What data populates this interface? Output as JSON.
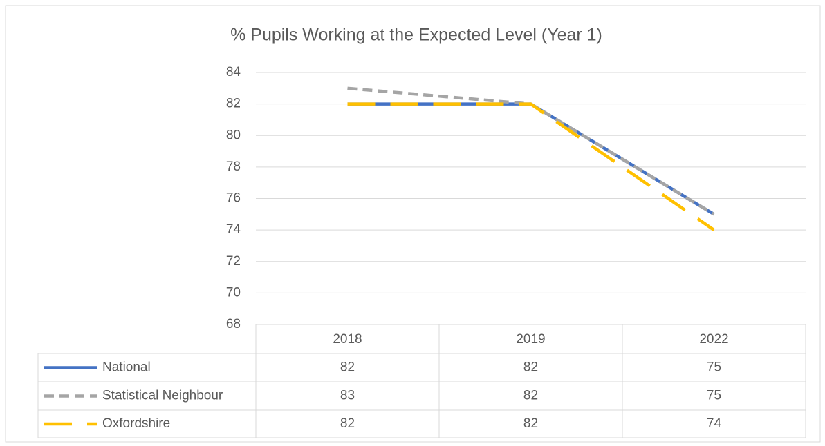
{
  "chart_data": {
    "type": "line",
    "title": "% Pupils Working at the Expected Level (Year 1)",
    "categories": [
      "2018",
      "2019",
      "2022"
    ],
    "series": [
      {
        "name": "National",
        "color": "#4472c4",
        "dash": "solid",
        "values": [
          82,
          82,
          75
        ]
      },
      {
        "name": "Statistical Neighbour",
        "color": "#a5a5a5",
        "dash": "dash",
        "values": [
          83,
          82,
          75
        ]
      },
      {
        "name": "Oxfordshire",
        "color": "#ffc000",
        "dash": "long-dash",
        "values": [
          82,
          82,
          74
        ]
      }
    ],
    "ylim": [
      68,
      84
    ],
    "yticks": [
      68,
      70,
      72,
      74,
      76,
      78,
      80,
      82,
      84
    ],
    "grid": true,
    "data_table": true
  }
}
